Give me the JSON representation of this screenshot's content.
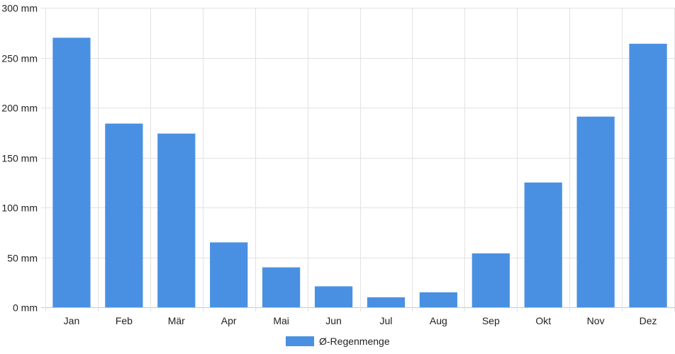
{
  "chart_data": {
    "type": "bar",
    "categories": [
      "Jan",
      "Feb",
      "Mär",
      "Apr",
      "Mai",
      "Jun",
      "Jul",
      "Aug",
      "Sep",
      "Okt",
      "Nov",
      "Dez"
    ],
    "series": [
      {
        "name": "Ø-Regenmenge",
        "values": [
          270,
          184,
          174,
          65,
          40,
          21,
          10,
          15,
          54,
          125,
          191,
          264
        ],
        "color": "#4a90e2"
      }
    ],
    "ylim": [
      0,
      300
    ],
    "yticks": [
      0,
      50,
      100,
      150,
      200,
      250,
      300
    ],
    "ytick_labels": [
      "0 mm",
      "50 mm",
      "100 mm",
      "150 mm",
      "200 mm",
      "250 mm",
      "300 mm"
    ],
    "grid": true,
    "legend_position": "bottom-center",
    "title": "",
    "xlabel": "",
    "ylabel": ""
  }
}
